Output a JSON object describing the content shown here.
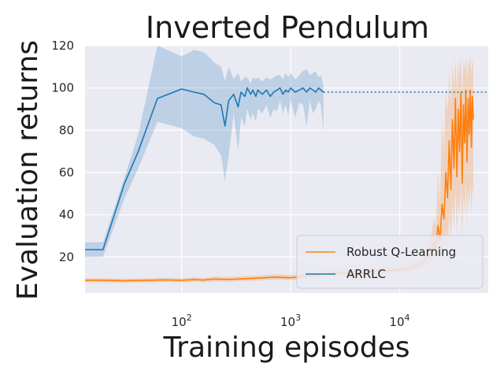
{
  "chart_data": {
    "type": "line",
    "title": "Inverted Pendulum",
    "xlabel": "Training episodes",
    "ylabel": "Evaluation returns",
    "xscale": "log",
    "xlim": [
      13,
      65000
    ],
    "ylim": [
      3,
      120
    ],
    "grid": true,
    "legend_position": "lower-right",
    "x_ticks": [
      {
        "value": 100,
        "base": "10",
        "exp": "2"
      },
      {
        "value": 1000,
        "base": "10",
        "exp": "3"
      },
      {
        "value": 10000,
        "base": "10",
        "exp": "4"
      }
    ],
    "y_ticks": [
      {
        "value": 20,
        "label": "20"
      },
      {
        "value": 40,
        "label": "40"
      },
      {
        "value": 60,
        "label": "60"
      },
      {
        "value": 80,
        "label": "80"
      },
      {
        "value": 100,
        "label": "100"
      },
      {
        "value": 120,
        "label": "120"
      }
    ],
    "reference_line": {
      "y": 98,
      "x_start": 2000,
      "x_end": 65000,
      "style": "dotted",
      "color": "#1f77b4"
    },
    "series": [
      {
        "name": "Robust Q-Learning",
        "color": "#ff7f0e",
        "x": [
          13,
          20,
          30,
          50,
          70,
          100,
          130,
          160,
          200,
          250,
          300,
          400,
          500,
          700,
          1000,
          1300,
          1600,
          2000,
          3000,
          4000,
          5000,
          7000,
          10000,
          13000,
          16000,
          18000,
          19500,
          20500,
          21500,
          22500,
          23500,
          24500,
          25500,
          26500,
          27500,
          28500,
          29500,
          30500,
          31500,
          32500,
          33500,
          34500,
          35500,
          36500,
          37500,
          38500,
          39500,
          40500,
          41500,
          42500,
          43500,
          44500,
          45500,
          46500,
          47500
        ],
        "y": [
          9,
          9,
          8.8,
          9,
          9.2,
          9,
          9.3,
          9.1,
          9.6,
          9.4,
          9.5,
          9.8,
          10,
          10.5,
          10.2,
          10.8,
          11.5,
          12,
          12.5,
          12.2,
          13,
          13.5,
          14,
          15,
          17,
          20,
          22,
          27,
          24,
          35,
          28,
          45,
          38,
          60,
          48,
          75,
          52,
          85,
          62,
          95,
          58,
          90,
          70,
          98,
          55,
          92,
          74,
          99,
          65,
          95,
          78,
          99,
          72,
          96,
          85
        ],
        "lower": [
          8,
          8,
          7.8,
          8,
          8.2,
          8,
          8.2,
          8.1,
          8.4,
          8.3,
          8.4,
          8.7,
          8.8,
          9.2,
          9,
          9.5,
          10,
          10.5,
          11,
          10.8,
          11.5,
          12,
          12.5,
          13,
          14.5,
          16.5,
          18,
          21,
          18,
          24,
          19,
          27,
          22,
          33,
          25,
          40,
          28,
          45,
          33,
          52,
          30,
          48,
          38,
          55,
          29,
          50,
          40,
          56,
          35,
          52,
          43,
          55,
          40,
          53,
          50
        ],
        "upper": [
          10,
          10,
          9.8,
          10,
          10.2,
          10,
          10.4,
          10.1,
          10.8,
          10.5,
          10.7,
          11,
          11.3,
          11.8,
          11.5,
          12.2,
          13,
          13.6,
          14,
          13.8,
          14.6,
          15,
          15.8,
          17.5,
          20,
          25,
          30,
          38,
          35,
          60,
          45,
          85,
          70,
          100,
          88,
          108,
          92,
          112,
          100,
          114,
          98,
          112,
          106,
          115,
          96,
          113,
          108,
          115,
          102,
          114,
          110,
          115,
          106,
          114,
          110
        ]
      },
      {
        "name": "ARRLC",
        "color": "#1f77b4",
        "x": [
          13,
          19,
          30,
          40,
          60,
          100,
          130,
          160,
          200,
          230,
          250,
          270,
          300,
          330,
          350,
          380,
          400,
          430,
          450,
          480,
          500,
          550,
          600,
          650,
          700,
          750,
          800,
          850,
          900,
          950,
          1000,
          1100,
          1200,
          1300,
          1400,
          1500,
          1600,
          1700,
          1800,
          1900,
          2000
        ],
        "y": [
          23.5,
          23.5,
          55,
          70,
          95,
          99.5,
          98,
          97,
          93,
          92,
          82,
          94,
          97,
          91,
          98,
          96,
          100,
          97,
          99,
          96,
          99,
          97,
          99,
          96,
          98,
          99,
          100,
          97,
          99,
          98,
          100,
          98,
          99,
          100,
          98,
          100,
          99,
          98,
          100,
          99,
          98
        ],
        "lower": [
          20,
          20,
          48,
          62,
          84,
          81,
          77,
          76,
          73,
          68,
          56,
          68,
          88,
          70,
          86,
          82,
          90,
          85,
          88,
          84,
          90,
          88,
          92,
          86,
          90,
          89,
          94,
          88,
          92,
          87,
          94,
          86,
          93,
          92,
          82,
          94,
          88,
          90,
          94,
          92,
          79
        ],
        "upper": [
          27,
          27,
          58,
          78,
          120,
          115,
          118,
          117,
          112,
          110,
          103,
          110,
          104,
          107,
          103,
          105,
          105,
          102,
          105,
          104,
          105,
          103,
          105,
          104,
          105,
          106,
          106,
          104,
          107,
          105,
          107,
          104,
          106,
          108,
          109,
          106,
          107,
          108,
          105,
          106,
          101
        ]
      }
    ]
  }
}
